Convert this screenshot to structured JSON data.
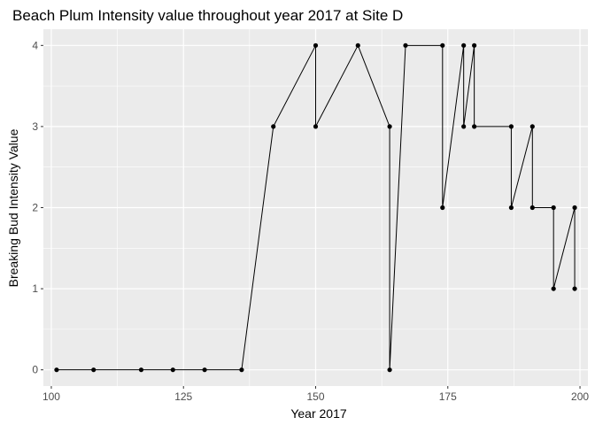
{
  "chart_data": {
    "type": "line",
    "title": "Beach Plum Intensity value throughout year 2017 at Site D",
    "xlabel": "Year 2017",
    "ylabel": "Breaking Bud Intensity Value",
    "xlim": [
      98.5,
      201.5
    ],
    "ylim": [
      -0.2,
      4.2
    ],
    "x_ticks": [
      100,
      125,
      150,
      175,
      200
    ],
    "y_ticks": [
      0,
      1,
      2,
      3,
      4
    ],
    "grid": true,
    "legend": "none",
    "colors": {
      "panel": "#ebebeb",
      "grid_major": "#ffffff",
      "line": "#000000",
      "point": "#000000",
      "tick_label": "#4d4d4d"
    },
    "points": [
      {
        "x": 101,
        "y": 0
      },
      {
        "x": 108,
        "y": 0
      },
      {
        "x": 117,
        "y": 0
      },
      {
        "x": 123,
        "y": 0
      },
      {
        "x": 129,
        "y": 0
      },
      {
        "x": 136,
        "y": 0
      },
      {
        "x": 142,
        "y": 3
      },
      {
        "x": 150,
        "y": 4
      },
      {
        "x": 150,
        "y": 3
      },
      {
        "x": 158,
        "y": 4
      },
      {
        "x": 164,
        "y": 3
      },
      {
        "x": 164,
        "y": 0
      },
      {
        "x": 167,
        "y": 4
      },
      {
        "x": 174,
        "y": 4
      },
      {
        "x": 174,
        "y": 2
      },
      {
        "x": 178,
        "y": 4
      },
      {
        "x": 178,
        "y": 3
      },
      {
        "x": 180,
        "y": 4
      },
      {
        "x": 180,
        "y": 3
      },
      {
        "x": 187,
        "y": 3
      },
      {
        "x": 187,
        "y": 2
      },
      {
        "x": 191,
        "y": 3
      },
      {
        "x": 191,
        "y": 2
      },
      {
        "x": 195,
        "y": 2
      },
      {
        "x": 195,
        "y": 1
      },
      {
        "x": 199,
        "y": 2
      },
      {
        "x": 199,
        "y": 1
      }
    ]
  }
}
